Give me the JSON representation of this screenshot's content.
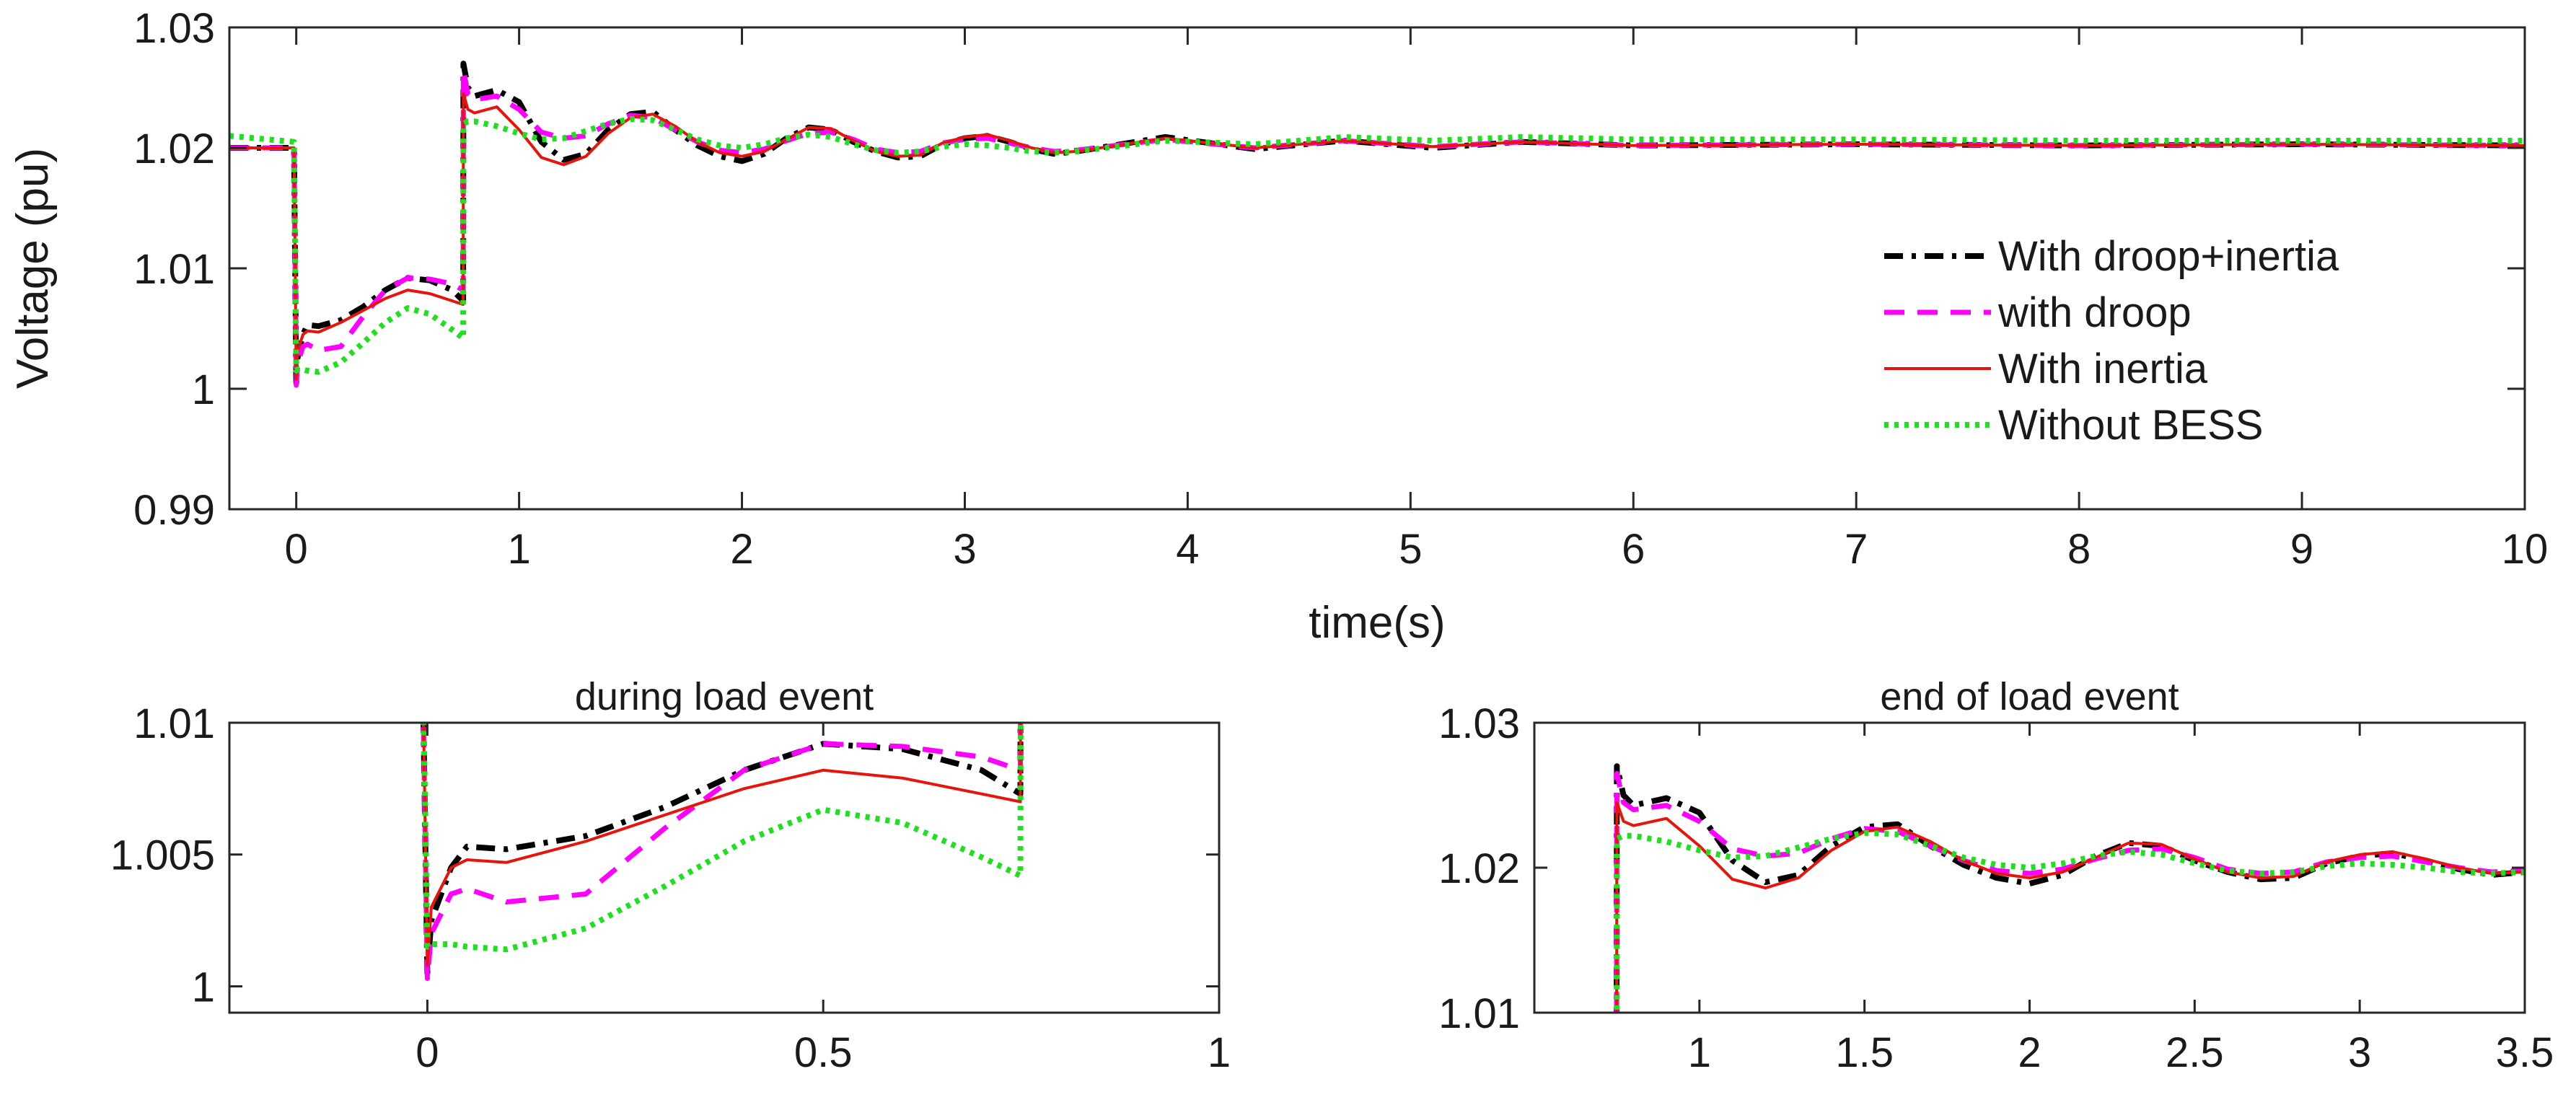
{
  "chart_data": [
    {
      "type": "line",
      "id": "main",
      "title": "",
      "xlabel": "time(s)",
      "ylabel": "Voltage (pu)",
      "xlim": [
        -0.3,
        10
      ],
      "ylim": [
        0.99,
        1.03
      ],
      "xticks": [
        0,
        1,
        2,
        3,
        4,
        5,
        6,
        7,
        8,
        9,
        10
      ],
      "xtick_labels": [
        "0",
        "1",
        "2",
        "3",
        "4",
        "5",
        "6",
        "7",
        "8",
        "9",
        "10"
      ],
      "yticks": [
        0.99,
        1,
        1.01,
        1.02,
        1.03
      ],
      "ytick_labels": [
        "0.99",
        "1",
        "1.01",
        "1.02",
        "1.03"
      ],
      "grid": false,
      "legend_position": "right"
    },
    {
      "type": "line",
      "id": "zoom1",
      "title": "during load event",
      "xlabel": "",
      "ylabel": "",
      "xlim": [
        -0.25,
        1
      ],
      "ylim": [
        0.999,
        1.01
      ],
      "xticks": [
        0,
        0.5,
        1
      ],
      "xtick_labels": [
        "0",
        "0.5",
        "1"
      ],
      "yticks": [
        1,
        1.005,
        1.01
      ],
      "ytick_labels": [
        "1",
        "1.005",
        "1.01"
      ],
      "grid": false
    },
    {
      "type": "line",
      "id": "zoom2",
      "title": "end of load event",
      "xlabel": "",
      "ylabel": "",
      "xlim": [
        0.5,
        3.5
      ],
      "ylim": [
        1.01,
        1.03
      ],
      "xticks": [
        1,
        1.5,
        2,
        2.5,
        3,
        3.5
      ],
      "xtick_labels": [
        "1",
        "1.5",
        "2",
        "2.5",
        "3",
        "3.5"
      ],
      "yticks": [
        1.01,
        1.02,
        1.03
      ],
      "ytick_labels": [
        "1.01",
        "1.02",
        "1.03"
      ],
      "grid": false
    }
  ],
  "series": [
    {
      "name": "With droop+inertia",
      "color": "#000000",
      "dash": "dashdot",
      "x": [
        -0.3,
        -0.01,
        0,
        0.005,
        0.03,
        0.05,
        0.1,
        0.2,
        0.3,
        0.4,
        0.5,
        0.6,
        0.7,
        0.749,
        0.75,
        0.77,
        0.8,
        0.9,
        1.0,
        1.1,
        1.2,
        1.3,
        1.4,
        1.5,
        1.6,
        1.7,
        1.8,
        1.9,
        2.0,
        2.1,
        2.2,
        2.3,
        2.4,
        2.5,
        2.6,
        2.7,
        2.8,
        2.9,
        3.0,
        3.1,
        3.2,
        3.3,
        3.4,
        3.5,
        3.9,
        4.3,
        4.7,
        5.1,
        5.5,
        6.0,
        7.0,
        8.0,
        9.0,
        10.0
      ],
      "y": [
        1.02,
        1.02,
        1.0005,
        1.0025,
        1.0045,
        1.0053,
        1.0052,
        1.0057,
        1.0068,
        1.0082,
        1.0092,
        1.009,
        1.0082,
        1.0073,
        1.027,
        1.025,
        1.0243,
        1.0248,
        1.0238,
        1.0205,
        1.019,
        1.0195,
        1.0215,
        1.0228,
        1.023,
        1.0215,
        1.0202,
        1.0193,
        1.0189,
        1.0195,
        1.0208,
        1.0217,
        1.0215,
        1.0205,
        1.0197,
        1.0192,
        1.0193,
        1.0203,
        1.0208,
        1.021,
        1.0205,
        1.0199,
        1.0195,
        1.0197,
        1.0209,
        1.0199,
        1.0206,
        1.02,
        1.0205,
        1.0202,
        1.0203,
        1.0202,
        1.0203,
        1.0202
      ]
    },
    {
      "name": "with droop",
      "color": "#ff00ff",
      "dash": "dashed",
      "x": [
        -0.3,
        -0.01,
        0,
        0.005,
        0.03,
        0.05,
        0.1,
        0.2,
        0.3,
        0.4,
        0.5,
        0.6,
        0.7,
        0.749,
        0.75,
        0.77,
        0.8,
        0.9,
        1.0,
        1.1,
        1.2,
        1.3,
        1.4,
        1.5,
        1.6,
        1.7,
        1.8,
        1.9,
        2.0,
        2.1,
        2.2,
        2.3,
        2.4,
        2.5,
        2.6,
        2.7,
        2.8,
        2.9,
        3.0,
        3.1,
        3.2,
        3.3,
        3.4,
        3.5,
        3.9,
        4.3,
        4.7,
        5.1,
        5.5,
        6.0,
        7.0,
        8.0,
        9.0,
        10.0
      ],
      "y": [
        1.02,
        1.02,
        1.0003,
        1.002,
        1.0035,
        1.0037,
        1.0032,
        1.0035,
        1.006,
        1.0082,
        1.0092,
        1.0091,
        1.0087,
        1.0082,
        1.0265,
        1.0245,
        1.024,
        1.0243,
        1.0232,
        1.0213,
        1.0208,
        1.021,
        1.022,
        1.0227,
        1.0225,
        1.0215,
        1.0205,
        1.0198,
        1.0196,
        1.0199,
        1.0206,
        1.0212,
        1.0213,
        1.0207,
        1.0199,
        1.0196,
        1.0197,
        1.0204,
        1.0207,
        1.0208,
        1.0204,
        1.02,
        1.0197,
        1.0198,
        1.0207,
        1.02,
        1.0206,
        1.0201,
        1.0205,
        1.0202,
        1.0203,
        1.0202,
        1.0203,
        1.0202
      ]
    },
    {
      "name": "With inertia",
      "color": "#e8140c",
      "dash": "solid",
      "x": [
        -0.3,
        -0.01,
        0,
        0.005,
        0.03,
        0.05,
        0.1,
        0.2,
        0.3,
        0.4,
        0.5,
        0.6,
        0.7,
        0.749,
        0.75,
        0.77,
        0.8,
        0.9,
        1.0,
        1.1,
        1.2,
        1.3,
        1.4,
        1.5,
        1.6,
        1.7,
        1.8,
        1.9,
        2.0,
        2.1,
        2.2,
        2.3,
        2.4,
        2.5,
        2.6,
        2.7,
        2.8,
        2.9,
        3.0,
        3.1,
        3.2,
        3.3,
        3.4,
        3.5,
        3.9,
        4.3,
        4.7,
        5.1,
        5.5,
        6.0,
        7.0,
        8.0,
        9.0,
        10.0
      ],
      "y": [
        1.02,
        1.02,
        1.0008,
        1.003,
        1.0045,
        1.0048,
        1.0047,
        1.0055,
        1.0065,
        1.0075,
        1.0082,
        1.0079,
        1.0073,
        1.007,
        1.0245,
        1.0232,
        1.0229,
        1.0234,
        1.0215,
        1.0192,
        1.0186,
        1.0193,
        1.0212,
        1.0225,
        1.0228,
        1.0218,
        1.0205,
        1.0196,
        1.0193,
        1.0197,
        1.0207,
        1.0217,
        1.0216,
        1.0206,
        1.0197,
        1.0193,
        1.0194,
        1.0204,
        1.0209,
        1.0211,
        1.0206,
        1.02,
        1.0196,
        1.0197,
        1.0208,
        1.02,
        1.0206,
        1.0201,
        1.0205,
        1.0202,
        1.0203,
        1.0202,
        1.0203,
        1.0202
      ]
    },
    {
      "name": "Without BESS",
      "color": "#1fe01f",
      "dash": "dotted",
      "x": [
        -0.3,
        -0.01,
        0,
        0.005,
        0.03,
        0.05,
        0.1,
        0.2,
        0.3,
        0.4,
        0.5,
        0.6,
        0.7,
        0.749,
        0.75,
        0.77,
        0.8,
        0.9,
        1.0,
        1.1,
        1.2,
        1.3,
        1.4,
        1.5,
        1.6,
        1.7,
        1.8,
        1.9,
        2.0,
        2.1,
        2.2,
        2.3,
        2.4,
        2.5,
        2.6,
        2.7,
        2.8,
        2.9,
        3.0,
        3.1,
        3.2,
        3.3,
        3.4,
        3.5,
        3.9,
        4.3,
        4.7,
        5.1,
        5.5,
        6.0,
        7.0,
        8.0,
        9.0,
        10.0
      ],
      "y": [
        1.021,
        1.0205,
        1.0015,
        1.0016,
        1.0016,
        1.0015,
        1.0014,
        1.0022,
        1.0038,
        1.0055,
        1.0067,
        1.0062,
        1.0049,
        1.0042,
        1.022,
        1.0222,
        1.0222,
        1.0218,
        1.0212,
        1.0207,
        1.0208,
        1.0214,
        1.022,
        1.0224,
        1.0223,
        1.0215,
        1.0207,
        1.0202,
        1.02,
        1.0203,
        1.0208,
        1.0211,
        1.0209,
        1.0203,
        1.0198,
        1.0196,
        1.0197,
        1.0201,
        1.0203,
        1.0202,
        1.02,
        1.0197,
        1.0196,
        1.0197,
        1.0206,
        1.0203,
        1.0209,
        1.0206,
        1.0209,
        1.0207,
        1.0207,
        1.0206,
        1.0206,
        1.0206
      ]
    }
  ]
}
